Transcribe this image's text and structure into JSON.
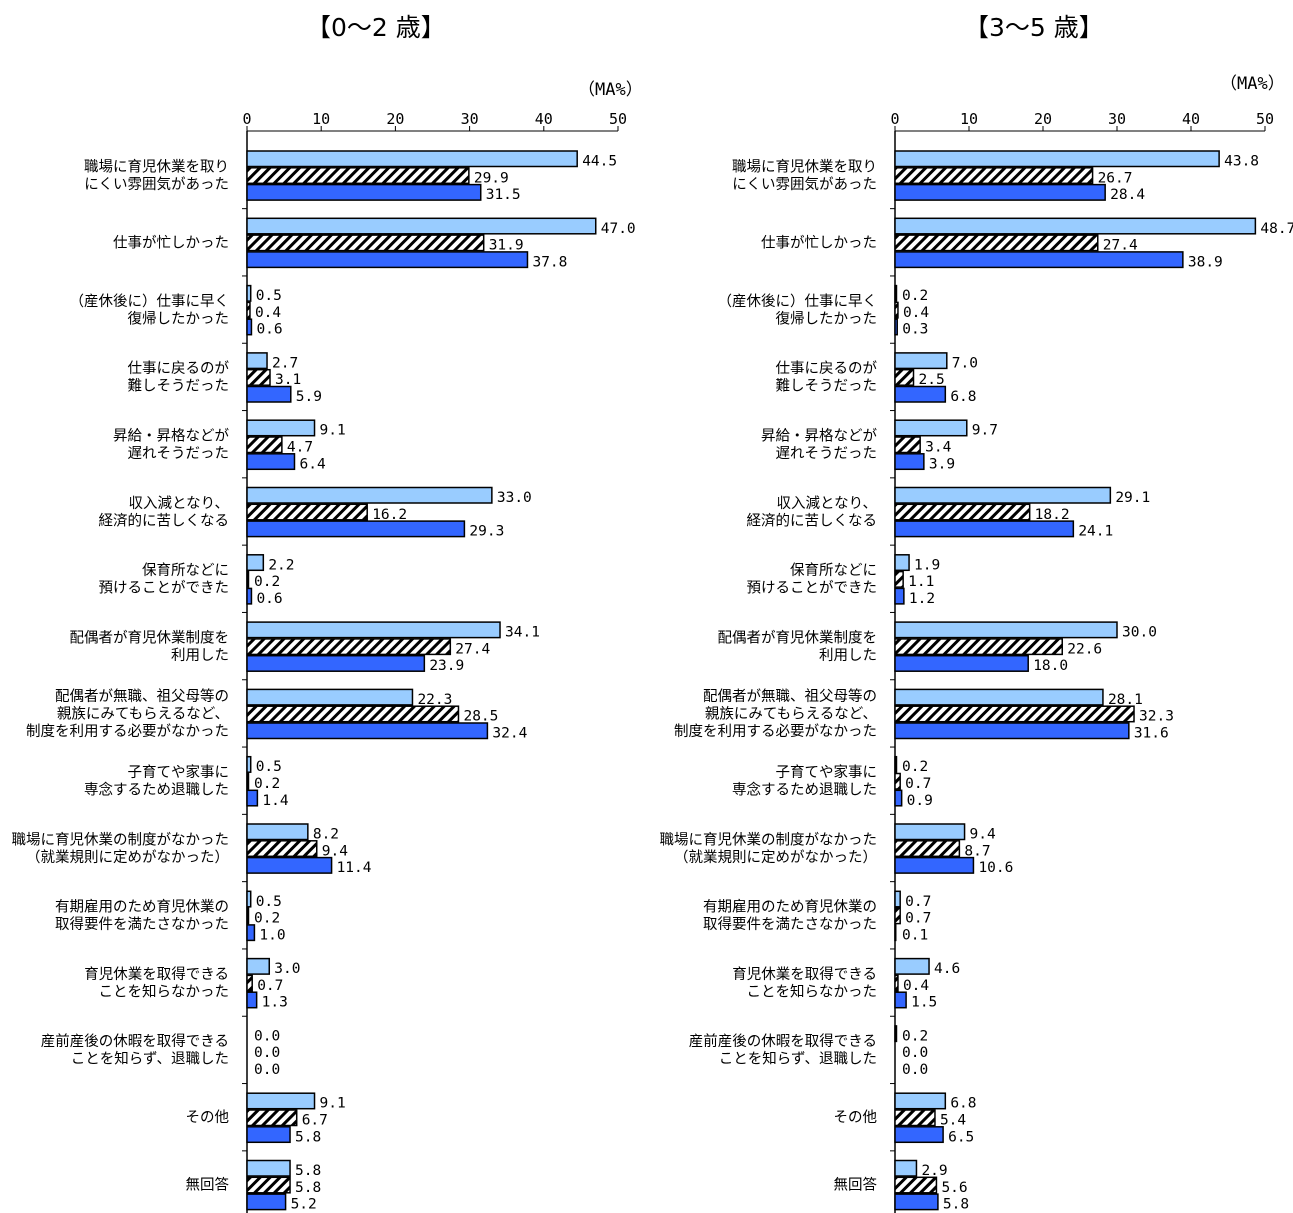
{
  "chart_data": [
    {
      "type": "bar",
      "orientation": "horizontal",
      "title": "【0～2 歳】",
      "unit_label": "（MA%）",
      "xlim": [
        0,
        50
      ],
      "x_ticks": [
        "0",
        "10",
        "20",
        "30",
        "40",
        "50"
      ],
      "grid": false,
      "categories": [
        [
          "職場に育児休業を取り",
          "にくい雰囲気があった"
        ],
        [
          "仕事が忙しかった"
        ],
        [
          "（産休後に）仕事に早く",
          "復帰したかった"
        ],
        [
          "仕事に戻るのが",
          "難しそうだった"
        ],
        [
          "昇給・昇格などが",
          "遅れそうだった"
        ],
        [
          "収入減となり、",
          "経済的に苦しくなる"
        ],
        [
          "保育所などに",
          "預けることができた"
        ],
        [
          "配偶者が育児休業制度を",
          "利用した"
        ],
        [
          "配偶者が無職、祖父母等の",
          "親族にみてもらえるなど、",
          "制度を利用する必要がなかった"
        ],
        [
          "子育てや家事に",
          "専念するため退職した"
        ],
        [
          "職場に育児休業の制度がなかった",
          "（就業規則に定めがなかった）"
        ],
        [
          "有期雇用のため育児休業の",
          "取得要件を満たさなかった"
        ],
        [
          "育児休業を取得できる",
          "ことを知らなかった"
        ],
        [
          "産前産後の休暇を取得できる",
          "ことを知らず、退職した"
        ],
        [
          "その他"
        ],
        [
          "無回答"
        ]
      ],
      "series": [
        {
          "style": "light-blue",
          "color": "#99ccff",
          "values": [
            44.5,
            47.0,
            0.5,
            2.7,
            9.1,
            33.0,
            2.2,
            34.1,
            22.3,
            0.5,
            8.2,
            0.5,
            3.0,
            0.0,
            9.1,
            5.8
          ],
          "labels": [
            "44.5",
            "47.0",
            "0.5",
            "2.7",
            "9.1",
            "33.0",
            "2.2",
            "34.1",
            "22.3",
            "0.5",
            "8.2",
            "0.5",
            "3.0",
            "0.0",
            "9.1",
            "5.8"
          ]
        },
        {
          "style": "hatched",
          "color": "#ffffff",
          "values": [
            29.9,
            31.9,
            0.4,
            3.1,
            4.7,
            16.2,
            0.2,
            27.4,
            28.5,
            0.2,
            9.4,
            0.2,
            0.7,
            0.0,
            6.7,
            5.8
          ],
          "labels": [
            "29.9",
            "31.9",
            "0.4",
            "3.1",
            "4.7",
            "16.2",
            "0.2",
            "27.4",
            "28.5",
            "0.2",
            "9.4",
            "0.2",
            "0.7",
            "0.0",
            "6.7",
            "5.8"
          ]
        },
        {
          "style": "blue",
          "color": "#3366ff",
          "values": [
            31.5,
            37.8,
            0.6,
            5.9,
            6.4,
            29.3,
            0.6,
            23.9,
            32.4,
            1.4,
            11.4,
            1.0,
            1.3,
            0.0,
            5.8,
            5.2
          ],
          "labels": [
            "31.5",
            "37.8",
            "0.6",
            "5.9",
            "6.4",
            "29.3",
            "0.6",
            "23.9",
            "32.4",
            "1.4",
            "11.4",
            "1.0",
            "1.3",
            "0.0",
            "5.8",
            "5.2"
          ]
        }
      ]
    },
    {
      "type": "bar",
      "orientation": "horizontal",
      "title": "【3～5 歳】",
      "unit_label": "（MA%）",
      "xlim": [
        0,
        50
      ],
      "x_ticks": [
        "0",
        "10",
        "20",
        "30",
        "40",
        "50"
      ],
      "grid": false,
      "categories": [
        [
          "職場に育児休業を取り",
          "にくい雰囲気があった"
        ],
        [
          "仕事が忙しかった"
        ],
        [
          "（産休後に）仕事に早く",
          "復帰したかった"
        ],
        [
          "仕事に戻るのが",
          "難しそうだった"
        ],
        [
          "昇給・昇格などが",
          "遅れそうだった"
        ],
        [
          "収入減となり、",
          "経済的に苦しくなる"
        ],
        [
          "保育所などに",
          "預けることができた"
        ],
        [
          "配偶者が育児休業制度を",
          "利用した"
        ],
        [
          "配偶者が無職、祖父母等の",
          "親族にみてもらえるなど、",
          "制度を利用する必要がなかった"
        ],
        [
          "子育てや家事に",
          "専念するため退職した"
        ],
        [
          "職場に育児休業の制度がなかった",
          "（就業規則に定めがなかった）"
        ],
        [
          "有期雇用のため育児休業の",
          "取得要件を満たさなかった"
        ],
        [
          "育児休業を取得できる",
          "ことを知らなかった"
        ],
        [
          "産前産後の休暇を取得できる",
          "ことを知らず、退職した"
        ],
        [
          "その他"
        ],
        [
          "無回答"
        ]
      ],
      "series": [
        {
          "style": "light-blue",
          "color": "#99ccff",
          "values": [
            43.8,
            48.7,
            0.2,
            7.0,
            9.7,
            29.1,
            1.9,
            30.0,
            28.1,
            0.2,
            9.4,
            0.7,
            4.6,
            0.2,
            6.8,
            2.9
          ],
          "labels": [
            "43.8",
            "48.7",
            "0.2",
            "7.0",
            "9.7",
            "29.1",
            "1.9",
            "30.0",
            "28.1",
            "0.2",
            "9.4",
            "0.7",
            "4.6",
            "0.2",
            "6.8",
            "2.9"
          ]
        },
        {
          "style": "hatched",
          "color": "#ffffff",
          "values": [
            26.7,
            27.4,
            0.4,
            2.5,
            3.4,
            18.2,
            1.1,
            22.6,
            32.3,
            0.7,
            8.7,
            0.7,
            0.4,
            0.0,
            5.4,
            5.6
          ],
          "labels": [
            "26.7",
            "27.4",
            "0.4",
            "2.5",
            "3.4",
            "18.2",
            "1.1",
            "22.6",
            "32.3",
            "0.7",
            "8.7",
            "0.7",
            "0.4",
            "0.0",
            "5.4",
            "5.6"
          ]
        },
        {
          "style": "blue",
          "color": "#3366ff",
          "values": [
            28.4,
            38.9,
            0.3,
            6.8,
            3.9,
            24.1,
            1.2,
            18.0,
            31.6,
            0.9,
            10.6,
            0.1,
            1.5,
            0.0,
            6.5,
            5.8
          ],
          "labels": [
            "28.4",
            "38.9",
            "0.3",
            "6.8",
            "3.9",
            "24.1",
            "1.2",
            "18.0",
            "31.6",
            "0.9",
            "10.6",
            "0.1",
            "1.5",
            "0.0",
            "6.5",
            "5.8"
          ]
        }
      ]
    }
  ]
}
